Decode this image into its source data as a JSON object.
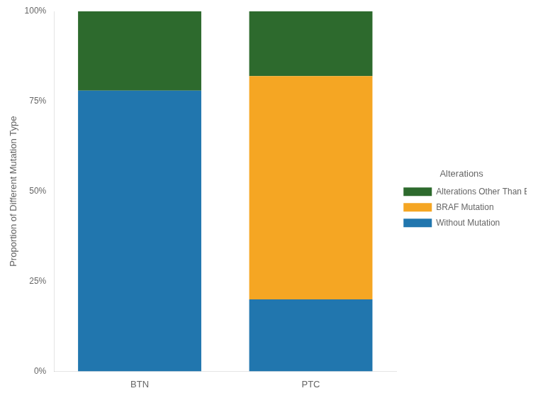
{
  "chart_data": {
    "type": "bar",
    "stacked": true,
    "categories": [
      "BTN",
      "PTC"
    ],
    "series": [
      {
        "name": "Without Mutation",
        "color": "#2176AE",
        "values": [
          0.78,
          0.2
        ]
      },
      {
        "name": "BRAF Mutation",
        "color": "#F5A623",
        "values": [
          0.0,
          0.62
        ]
      },
      {
        "name": "Alterations Other Than BRAF",
        "color": "#2D6A2D",
        "values": [
          0.22,
          0.18
        ]
      }
    ],
    "ylabel": "Proportion of Different Mutation Type",
    "ylim": [
      0,
      1.0
    ],
    "yticks": [
      {
        "value": 0,
        "label": "0%"
      },
      {
        "value": 0.25,
        "label": "25%"
      },
      {
        "value": 0.5,
        "label": "50%"
      },
      {
        "value": 0.75,
        "label": "75%"
      },
      {
        "value": 1.0,
        "label": "100%"
      }
    ],
    "legend": "right",
    "legend_title": "Alterations",
    "grid": false
  }
}
